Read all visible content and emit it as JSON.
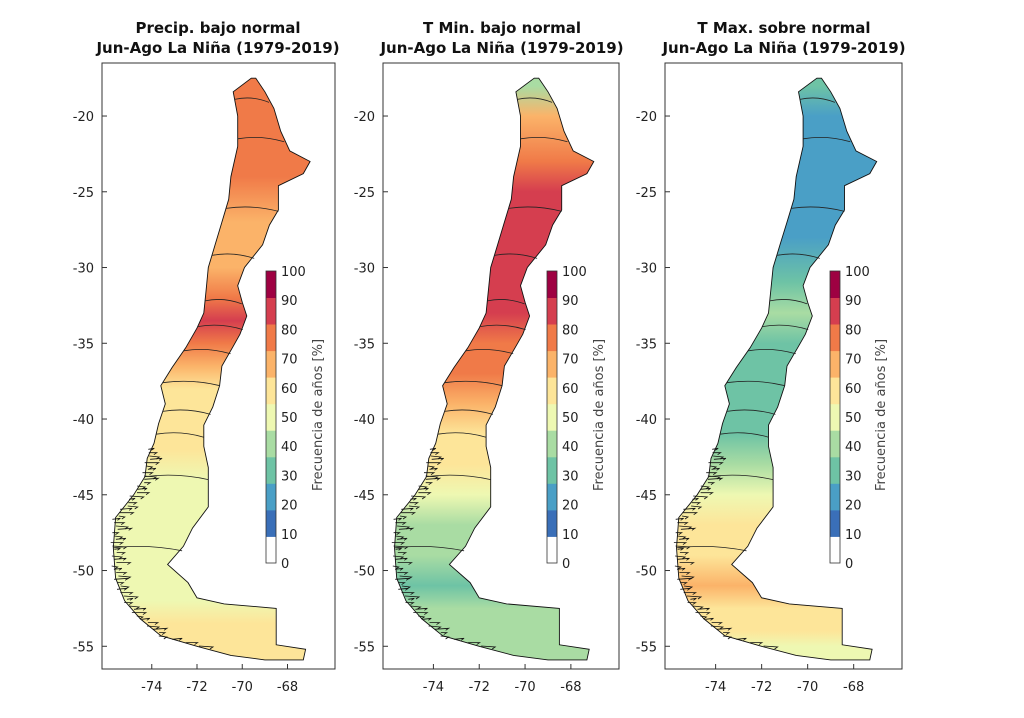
{
  "panels": [
    {
      "title_line1": "Precip. bajo normal",
      "title_line2": "Jun-Ago La Niña (1979-2019)",
      "pattern": [
        [
          -18,
          80
        ],
        [
          -21,
          82
        ],
        [
          -24,
          76
        ],
        [
          -27,
          72
        ],
        [
          -30,
          70
        ],
        [
          -32,
          80
        ],
        [
          -33.5,
          88
        ],
        [
          -35,
          84
        ],
        [
          -36.5,
          66
        ],
        [
          -38,
          60
        ],
        [
          -40,
          58
        ],
        [
          -42,
          55
        ],
        [
          -44,
          52
        ],
        [
          -46,
          48
        ],
        [
          -48,
          48
        ],
        [
          -50,
          46
        ],
        [
          -52,
          50
        ],
        [
          -53.5,
          60
        ],
        [
          -55,
          58
        ]
      ]
    },
    {
      "title_line1": "T Min. bajo normal",
      "title_line2": "Jun-Ago La Niña (1979-2019)",
      "pattern": [
        [
          -18,
          40
        ],
        [
          -20,
          74
        ],
        [
          -23,
          80
        ],
        [
          -25,
          86
        ],
        [
          -28,
          92
        ],
        [
          -31,
          94
        ],
        [
          -33,
          86
        ],
        [
          -35,
          80
        ],
        [
          -37,
          76
        ],
        [
          -39,
          72
        ],
        [
          -41,
          62
        ],
        [
          -43,
          58
        ],
        [
          -45,
          50
        ],
        [
          -47,
          44
        ],
        [
          -49,
          40
        ],
        [
          -51,
          30
        ],
        [
          -52.5,
          40
        ],
        [
          -54,
          38
        ],
        [
          -55,
          36
        ]
      ]
    },
    {
      "title_line1": "T Max. sobre normal",
      "title_line2": "Jun-Ago La Niña (1979-2019)",
      "pattern": [
        [
          -18,
          30
        ],
        [
          -20,
          16
        ],
        [
          -23,
          24
        ],
        [
          -25,
          18
        ],
        [
          -28,
          22
        ],
        [
          -31,
          34
        ],
        [
          -33,
          36
        ],
        [
          -35,
          34
        ],
        [
          -37,
          32
        ],
        [
          -39,
          32
        ],
        [
          -41,
          34
        ],
        [
          -43,
          38
        ],
        [
          -45,
          48
        ],
        [
          -47,
          56
        ],
        [
          -49,
          62
        ],
        [
          -51,
          72
        ],
        [
          -52.5,
          62
        ],
        [
          -54,
          56
        ],
        [
          -55,
          50
        ]
      ]
    }
  ],
  "axes": {
    "lat_ticks": [
      "-20",
      "-25",
      "-30",
      "-35",
      "-40",
      "-45",
      "-50",
      "-55"
    ],
    "lat_values": [
      -20,
      -25,
      -30,
      -35,
      -40,
      -45,
      -50,
      -55
    ],
    "lon_ticks": [
      "-74",
      "-72",
      "-70",
      "-68"
    ],
    "lon_values": [
      -74,
      -72,
      -70,
      -68
    ],
    "lat_range": [
      -56.5,
      -16.5
    ],
    "lon_range": [
      -76.2,
      -65.9
    ]
  },
  "colorbar": {
    "label": "Frecuencia de años [%]",
    "ticks": [
      "0",
      "10",
      "20",
      "30",
      "40",
      "50",
      "60",
      "70",
      "80",
      "90",
      "100"
    ],
    "colors": [
      "#ffffff",
      "#3a6fb8",
      "#4a9fc6",
      "#6ec3a5",
      "#a9dca3",
      "#eef8b2",
      "#fde599",
      "#fbb369",
      "#f07a48",
      "#d53e4f",
      "#9e0142"
    ]
  }
}
